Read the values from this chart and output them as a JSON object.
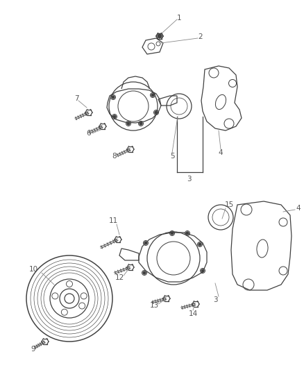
{
  "bg_color": "#ffffff",
  "line_color": "#404040",
  "label_color": "#555555",
  "label_fontsize": 7.5,
  "fig_width": 4.38,
  "fig_height": 5.33,
  "dpi": 100
}
